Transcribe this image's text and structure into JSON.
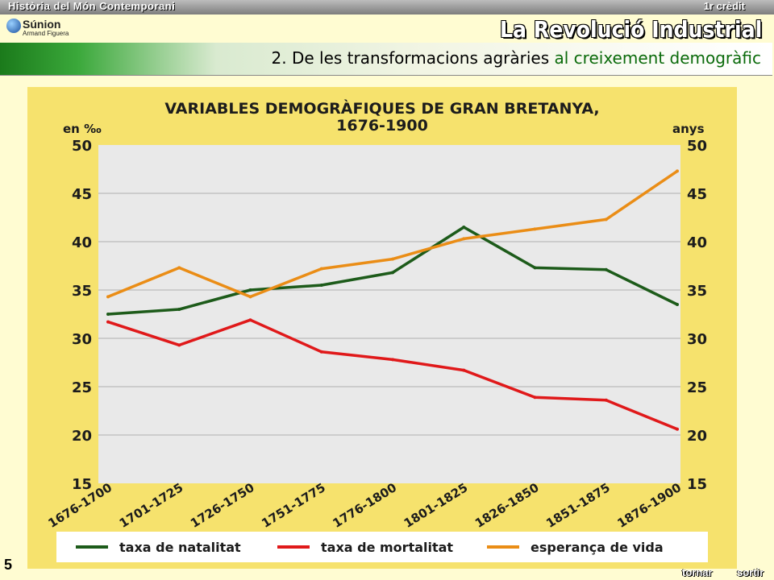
{
  "header": {
    "subject": "Història del Món Contemporani",
    "credit": "1r crèdit",
    "brand": "Súnion",
    "author": "Armand Figuera",
    "unit_title": "La Revolució Industrial"
  },
  "section": {
    "title_main": "2. De les transformacions agràries",
    "title_rest": " al creixement demogràfic"
  },
  "footer": {
    "slide_number": "5",
    "back_label": "tornar",
    "exit_label": "sortir"
  },
  "colors": {
    "page_bg": "#fffcd2",
    "chart_bg": "#f6e26d",
    "plot_bg": "#e9e9e9",
    "natality": "#1d5b1a",
    "mortality": "#e0191a",
    "life_expectancy": "#ea8d16"
  },
  "chart_data": {
    "type": "line",
    "title": "VARIABLES DEMOGRÀFIQUES DE GRAN BRETANYA,",
    "subtitle": "1676-1900",
    "ylabel_left": "en ‰",
    "ylabel_right": "anys",
    "ylim": [
      15,
      50
    ],
    "yticks": [
      15,
      20,
      25,
      30,
      35,
      40,
      45,
      50
    ],
    "grid": true,
    "legend_position": "bottom",
    "categories": [
      "1676-1700",
      "1701-1725",
      "1726-1750",
      "1751-1775",
      "1776-1800",
      "1801-1825",
      "1826-1850",
      "1851-1875",
      "1876-1900"
    ],
    "series": [
      {
        "name": "taxa de natalitat",
        "color": "#1d5b1a",
        "values": [
          32.5,
          33.0,
          35.0,
          35.5,
          36.8,
          41.5,
          37.3,
          37.1,
          33.5
        ]
      },
      {
        "name": "taxa de mortalitat",
        "color": "#e0191a",
        "values": [
          31.7,
          29.3,
          31.9,
          28.6,
          27.8,
          26.7,
          23.9,
          23.6,
          20.6
        ]
      },
      {
        "name": "esperança de vida",
        "color": "#ea8d16",
        "values": [
          34.3,
          37.3,
          34.3,
          37.2,
          38.2,
          40.3,
          41.3,
          42.3,
          47.3
        ]
      }
    ]
  }
}
